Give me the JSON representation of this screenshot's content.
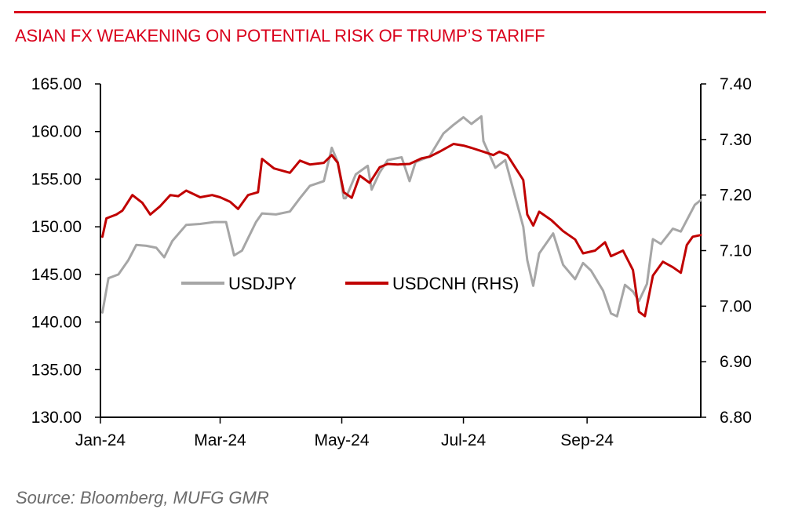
{
  "colors": {
    "accent": "#d9001b",
    "usdjpy": "#a6a6a6",
    "usdcnh": "#c00000",
    "axis": "#000000",
    "source_text": "#6b6b6b"
  },
  "source": "Source: Bloomberg, MUFG GMR",
  "chart_data": {
    "type": "line",
    "title": "ASIAN FX WEAKENING ON POTENTIAL RISK OF TRUMP’S TARIFF",
    "xlabel": "",
    "ylabel": "",
    "grid": false,
    "legend_position": "center-left",
    "x_ticks": [
      "Jan-24",
      "Mar-24",
      "May-24",
      "Jul-24",
      "Sep-24"
    ],
    "xlim": [
      "2024-01-01",
      "2024-10-28"
    ],
    "y_left": {
      "ticks": [
        "165.00",
        "160.00",
        "155.00",
        "150.00",
        "145.00",
        "140.00",
        "135.00",
        "130.00"
      ],
      "ylim": [
        130,
        165
      ]
    },
    "y_right": {
      "ticks": [
        "7.40",
        "7.30",
        "7.20",
        "7.10",
        "7.00",
        "6.90",
        "6.80"
      ],
      "ylim": [
        6.8,
        7.4
      ]
    },
    "series": [
      {
        "name": "USDJPY",
        "axis": "left",
        "color": "#a6a6a6",
        "points": [
          [
            "2024-01-02",
            141.0
          ],
          [
            "2024-01-05",
            144.6
          ],
          [
            "2024-01-10",
            145.0
          ],
          [
            "2024-01-15",
            146.5
          ],
          [
            "2024-01-19",
            148.1
          ],
          [
            "2024-01-24",
            148.0
          ],
          [
            "2024-01-29",
            147.8
          ],
          [
            "2024-02-02",
            146.8
          ],
          [
            "2024-02-06",
            148.5
          ],
          [
            "2024-02-13",
            150.2
          ],
          [
            "2024-02-20",
            150.3
          ],
          [
            "2024-02-27",
            150.5
          ],
          [
            "2024-03-04",
            150.5
          ],
          [
            "2024-03-08",
            147.0
          ],
          [
            "2024-03-12",
            147.5
          ],
          [
            "2024-03-15",
            148.8
          ],
          [
            "2024-03-19",
            150.5
          ],
          [
            "2024-03-22",
            151.4
          ],
          [
            "2024-03-29",
            151.3
          ],
          [
            "2024-04-05",
            151.6
          ],
          [
            "2024-04-10",
            153.0
          ],
          [
            "2024-04-15",
            154.3
          ],
          [
            "2024-04-22",
            154.8
          ],
          [
            "2024-04-26",
            158.3
          ],
          [
            "2024-04-29",
            156.8
          ],
          [
            "2024-05-02",
            153.0
          ],
          [
            "2024-05-03",
            153.0
          ],
          [
            "2024-05-08",
            155.5
          ],
          [
            "2024-05-14",
            156.4
          ],
          [
            "2024-05-16",
            153.9
          ],
          [
            "2024-05-20",
            155.7
          ],
          [
            "2024-05-24",
            157.0
          ],
          [
            "2024-05-31",
            157.3
          ],
          [
            "2024-06-04",
            154.8
          ],
          [
            "2024-06-07",
            156.8
          ],
          [
            "2024-06-14",
            157.4
          ],
          [
            "2024-06-21",
            159.8
          ],
          [
            "2024-06-26",
            160.7
          ],
          [
            "2024-07-01",
            161.5
          ],
          [
            "2024-07-05",
            160.8
          ],
          [
            "2024-07-10",
            161.6
          ],
          [
            "2024-07-11",
            159.0
          ],
          [
            "2024-07-17",
            156.2
          ],
          [
            "2024-07-22",
            157.0
          ],
          [
            "2024-07-26",
            153.9
          ],
          [
            "2024-07-31",
            150.0
          ],
          [
            "2024-08-02",
            146.5
          ],
          [
            "2024-08-05",
            143.8
          ],
          [
            "2024-08-08",
            147.2
          ],
          [
            "2024-08-15",
            149.3
          ],
          [
            "2024-08-20",
            146.0
          ],
          [
            "2024-08-26",
            144.5
          ],
          [
            "2024-08-30",
            146.2
          ],
          [
            "2024-09-03",
            145.4
          ],
          [
            "2024-09-09",
            143.3
          ],
          [
            "2024-09-13",
            140.9
          ],
          [
            "2024-09-16",
            140.6
          ],
          [
            "2024-09-20",
            143.9
          ],
          [
            "2024-09-24",
            143.2
          ],
          [
            "2024-09-27",
            142.2
          ],
          [
            "2024-10-01",
            144.0
          ],
          [
            "2024-10-04",
            148.7
          ],
          [
            "2024-10-08",
            148.2
          ],
          [
            "2024-10-14",
            149.8
          ],
          [
            "2024-10-18",
            149.5
          ],
          [
            "2024-10-25",
            152.3
          ],
          [
            "2024-10-28",
            152.8
          ]
        ]
      },
      {
        "name": "USDCNH (RHS)",
        "axis": "right",
        "color": "#c00000",
        "points": [
          [
            "2024-01-02",
            7.125
          ],
          [
            "2024-01-04",
            7.158
          ],
          [
            "2024-01-09",
            7.165
          ],
          [
            "2024-01-12",
            7.172
          ],
          [
            "2024-01-17",
            7.2
          ],
          [
            "2024-01-22",
            7.186
          ],
          [
            "2024-01-26",
            7.165
          ],
          [
            "2024-01-31",
            7.18
          ],
          [
            "2024-02-05",
            7.2
          ],
          [
            "2024-02-09",
            7.198
          ],
          [
            "2024-02-13",
            7.208
          ],
          [
            "2024-02-20",
            7.196
          ],
          [
            "2024-02-26",
            7.2
          ],
          [
            "2024-03-01",
            7.196
          ],
          [
            "2024-03-06",
            7.188
          ],
          [
            "2024-03-10",
            7.175
          ],
          [
            "2024-03-15",
            7.2
          ],
          [
            "2024-03-20",
            7.205
          ],
          [
            "2024-03-22",
            7.265
          ],
          [
            "2024-03-28",
            7.248
          ],
          [
            "2024-04-05",
            7.24
          ],
          [
            "2024-04-10",
            7.262
          ],
          [
            "2024-04-15",
            7.255
          ],
          [
            "2024-04-22",
            7.258
          ],
          [
            "2024-04-26",
            7.272
          ],
          [
            "2024-04-29",
            7.258
          ],
          [
            "2024-05-02",
            7.205
          ],
          [
            "2024-05-06",
            7.195
          ],
          [
            "2024-05-10",
            7.235
          ],
          [
            "2024-05-15",
            7.222
          ],
          [
            "2024-05-20",
            7.25
          ],
          [
            "2024-05-24",
            7.256
          ],
          [
            "2024-05-29",
            7.255
          ],
          [
            "2024-06-04",
            7.256
          ],
          [
            "2024-06-10",
            7.266
          ],
          [
            "2024-06-14",
            7.269
          ],
          [
            "2024-06-19",
            7.278
          ],
          [
            "2024-06-26",
            7.292
          ],
          [
            "2024-07-01",
            7.289
          ],
          [
            "2024-07-05",
            7.285
          ],
          [
            "2024-07-11",
            7.278
          ],
          [
            "2024-07-16",
            7.272
          ],
          [
            "2024-07-19",
            7.278
          ],
          [
            "2024-07-23",
            7.272
          ],
          [
            "2024-07-26",
            7.255
          ],
          [
            "2024-07-31",
            7.227
          ],
          [
            "2024-08-02",
            7.165
          ],
          [
            "2024-08-05",
            7.145
          ],
          [
            "2024-08-08",
            7.17
          ],
          [
            "2024-08-14",
            7.155
          ],
          [
            "2024-08-20",
            7.135
          ],
          [
            "2024-08-26",
            7.12
          ],
          [
            "2024-08-30",
            7.095
          ],
          [
            "2024-09-05",
            7.1
          ],
          [
            "2024-09-10",
            7.115
          ],
          [
            "2024-09-13",
            7.09
          ],
          [
            "2024-09-19",
            7.1
          ],
          [
            "2024-09-24",
            7.065
          ],
          [
            "2024-09-27",
            6.99
          ],
          [
            "2024-09-30",
            6.982
          ],
          [
            "2024-10-04",
            7.055
          ],
          [
            "2024-10-09",
            7.08
          ],
          [
            "2024-10-14",
            7.07
          ],
          [
            "2024-10-18",
            7.06
          ],
          [
            "2024-10-21",
            7.11
          ],
          [
            "2024-10-24",
            7.125
          ],
          [
            "2024-10-28",
            7.128
          ]
        ]
      }
    ]
  }
}
